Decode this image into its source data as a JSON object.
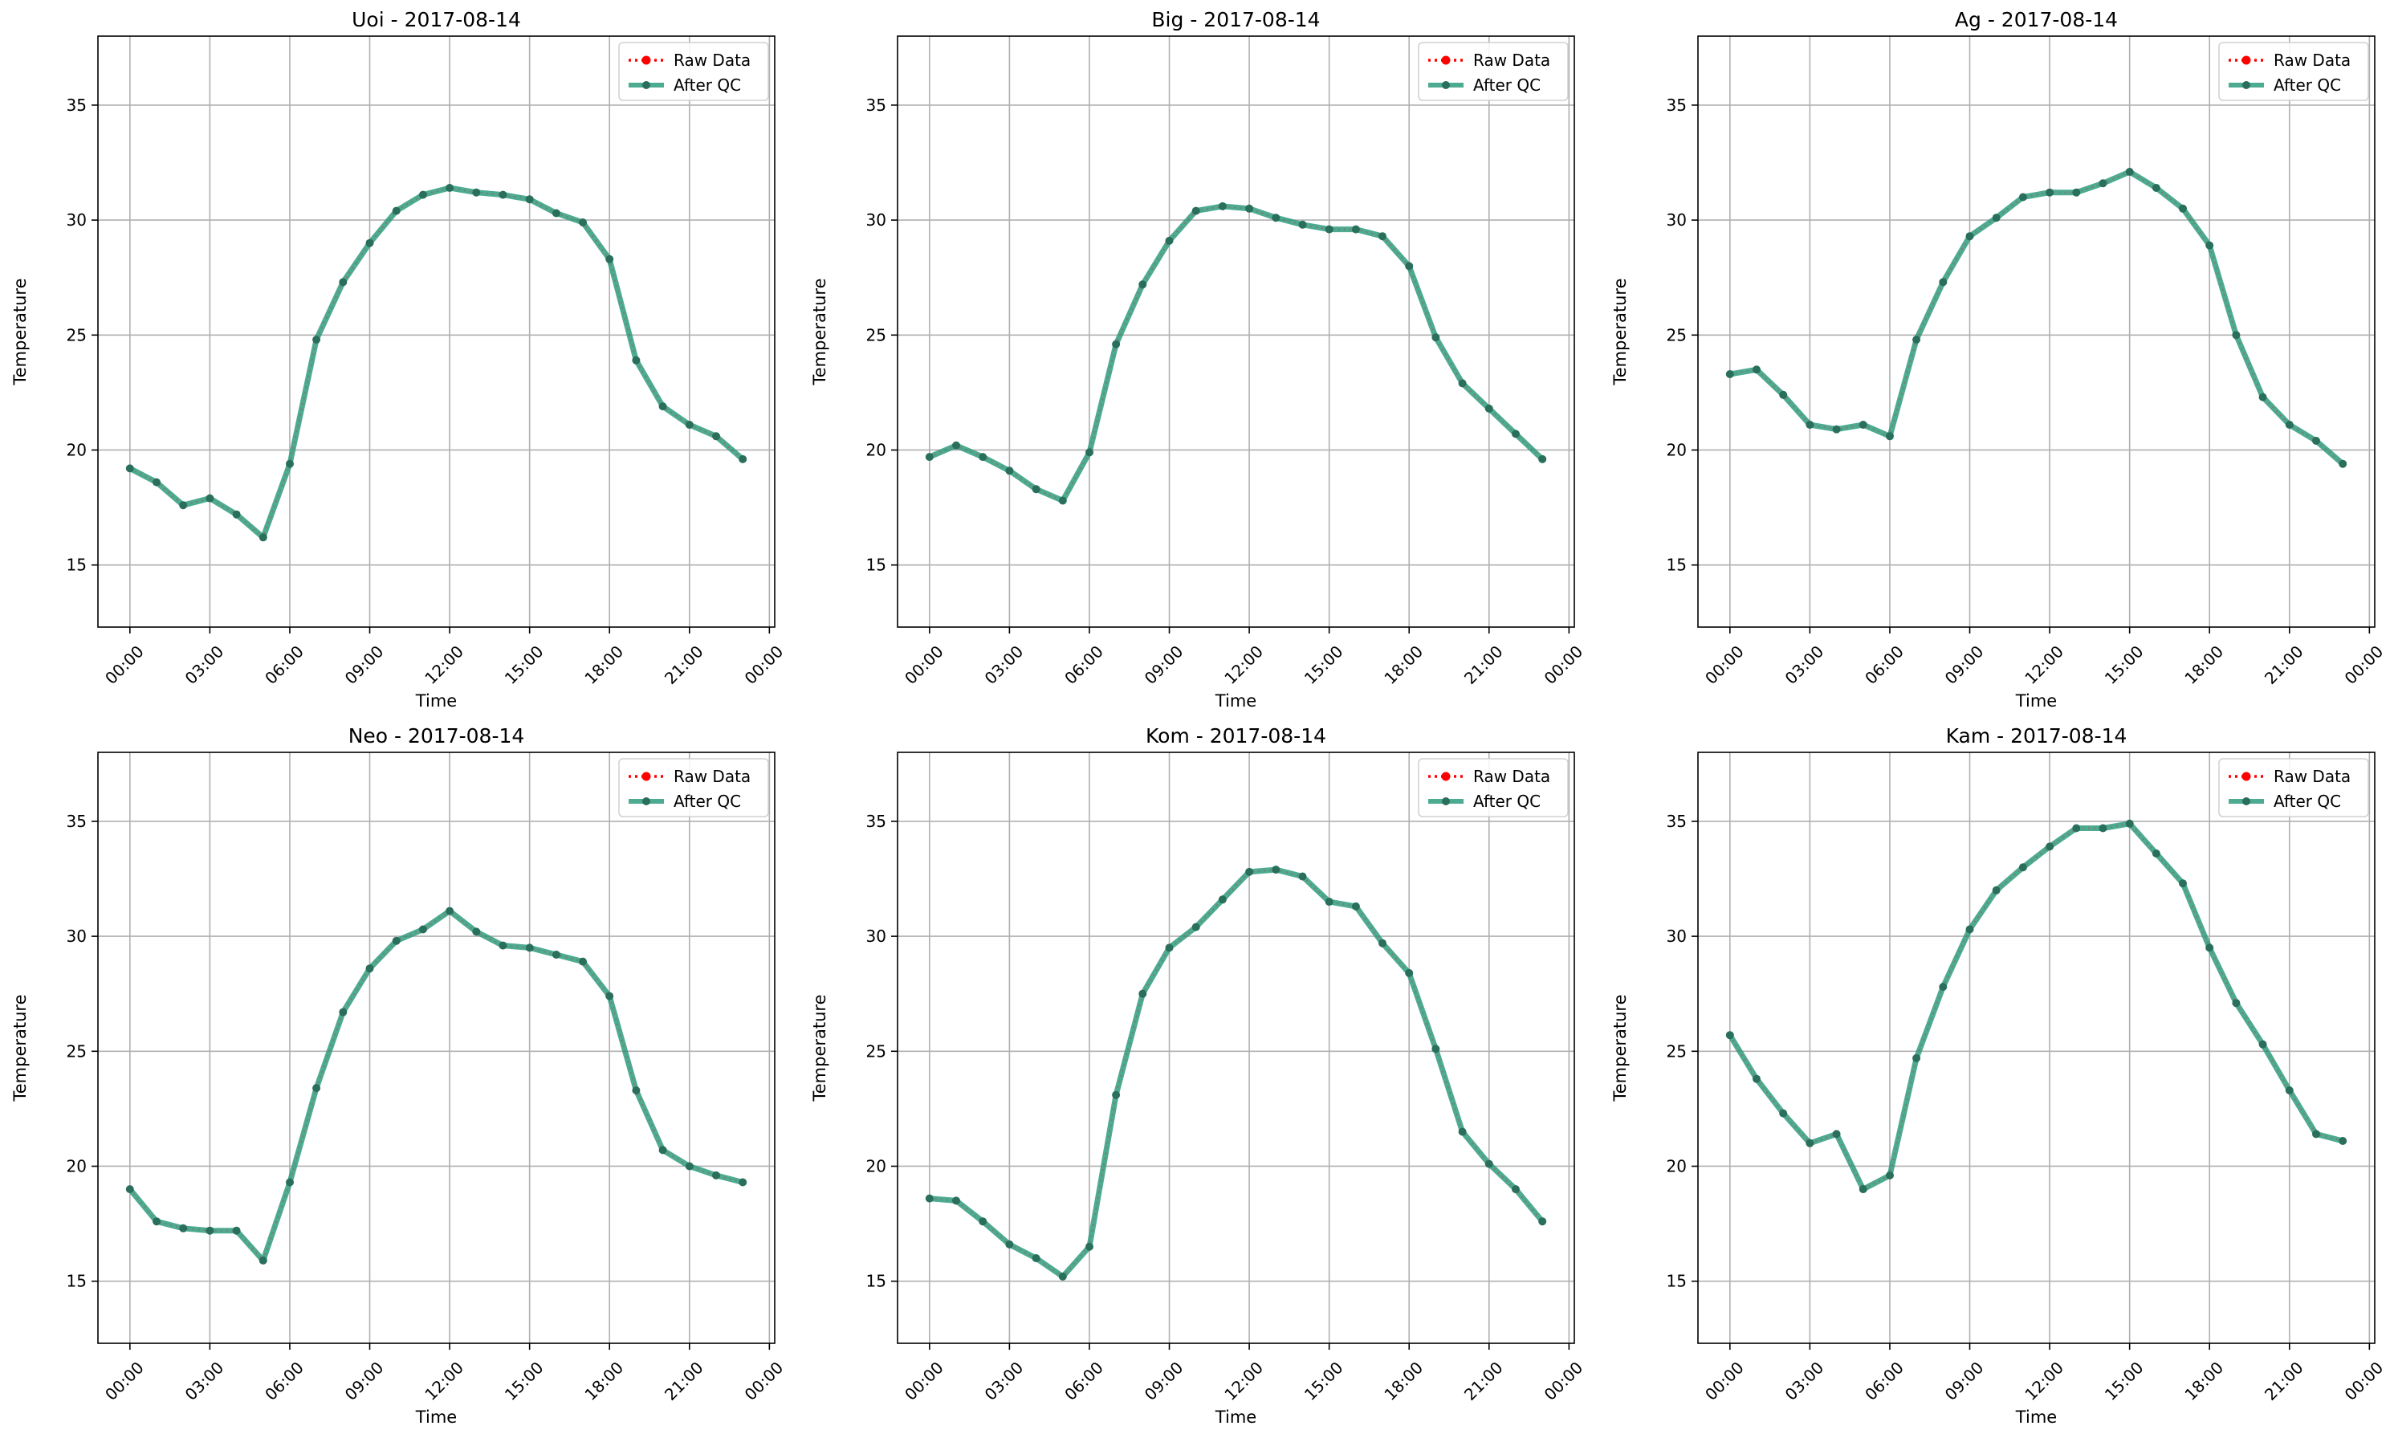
{
  "colors": {
    "raw": "#ff0000",
    "qc": "#2e9c7e",
    "qc_marker": "#2a6f5c",
    "grid": "#b0b0b0"
  },
  "chart_data": [
    {
      "type": "line",
      "title": "Uoi - 2017-08-14",
      "xlabel": "Time",
      "ylabel": "Temperature",
      "x_ticks": [
        "00:00",
        "03:00",
        "06:00",
        "09:00",
        "12:00",
        "15:00",
        "18:00",
        "21:00",
        "00:00"
      ],
      "y_ticks": [
        15,
        20,
        25,
        30,
        35
      ],
      "xlim_hours": [
        -1.2,
        24.2
      ],
      "ylim": [
        12.3,
        38.0
      ],
      "grid": true,
      "legend": "top-right",
      "series": [
        {
          "name": "Raw Data",
          "values": [
            19.2,
            18.6,
            17.6,
            17.9,
            17.2,
            16.2,
            19.4,
            24.8,
            27.3,
            29.0,
            30.4,
            31.1,
            31.4,
            31.2,
            31.1,
            30.9,
            30.3,
            29.9,
            28.3,
            23.9,
            21.9,
            21.1,
            20.6,
            19.6
          ]
        },
        {
          "name": "After QC",
          "values": [
            19.2,
            18.6,
            17.6,
            17.9,
            17.2,
            16.2,
            19.4,
            24.8,
            27.3,
            29.0,
            30.4,
            31.1,
            31.4,
            31.2,
            31.1,
            30.9,
            30.3,
            29.9,
            28.3,
            23.9,
            21.9,
            21.1,
            20.6,
            19.6
          ]
        }
      ]
    },
    {
      "type": "line",
      "title": "Big - 2017-08-14",
      "xlabel": "Time",
      "ylabel": "Temperature",
      "x_ticks": [
        "00:00",
        "03:00",
        "06:00",
        "09:00",
        "12:00",
        "15:00",
        "18:00",
        "21:00",
        "00:00"
      ],
      "y_ticks": [
        15,
        20,
        25,
        30,
        35
      ],
      "xlim_hours": [
        -1.2,
        24.2
      ],
      "ylim": [
        12.3,
        38.0
      ],
      "grid": true,
      "legend": "top-right",
      "series": [
        {
          "name": "Raw Data",
          "values": [
            19.7,
            20.2,
            19.7,
            19.1,
            18.3,
            17.8,
            19.9,
            24.6,
            27.2,
            29.1,
            30.4,
            30.6,
            30.5,
            30.1,
            29.8,
            29.6,
            29.6,
            29.3,
            28.0,
            24.9,
            22.9,
            21.8,
            20.7,
            19.6
          ]
        },
        {
          "name": "After QC",
          "values": [
            19.7,
            20.2,
            19.7,
            19.1,
            18.3,
            17.8,
            19.9,
            24.6,
            27.2,
            29.1,
            30.4,
            30.6,
            30.5,
            30.1,
            29.8,
            29.6,
            29.6,
            29.3,
            28.0,
            24.9,
            22.9,
            21.8,
            20.7,
            19.6
          ]
        }
      ]
    },
    {
      "type": "line",
      "title": "Ag - 2017-08-14",
      "xlabel": "Time",
      "ylabel": "Temperature",
      "x_ticks": [
        "00:00",
        "03:00",
        "06:00",
        "09:00",
        "12:00",
        "15:00",
        "18:00",
        "21:00",
        "00:00"
      ],
      "y_ticks": [
        15,
        20,
        25,
        30,
        35
      ],
      "xlim_hours": [
        -1.2,
        24.2
      ],
      "ylim": [
        12.3,
        38.0
      ],
      "grid": true,
      "legend": "top-right",
      "series": [
        {
          "name": "Raw Data",
          "values": [
            23.3,
            23.5,
            22.4,
            21.1,
            20.9,
            21.1,
            20.6,
            24.8,
            27.3,
            29.3,
            30.1,
            31.0,
            31.2,
            31.2,
            31.6,
            32.1,
            31.4,
            30.5,
            28.9,
            25.0,
            22.3,
            21.1,
            20.4,
            19.4
          ]
        },
        {
          "name": "After QC",
          "values": [
            23.3,
            23.5,
            22.4,
            21.1,
            20.9,
            21.1,
            20.6,
            24.8,
            27.3,
            29.3,
            30.1,
            31.0,
            31.2,
            31.2,
            31.6,
            32.1,
            31.4,
            30.5,
            28.9,
            25.0,
            22.3,
            21.1,
            20.4,
            19.4
          ]
        }
      ]
    },
    {
      "type": "line",
      "title": "Neo - 2017-08-14",
      "xlabel": "Time",
      "ylabel": "Temperature",
      "x_ticks": [
        "00:00",
        "03:00",
        "06:00",
        "09:00",
        "12:00",
        "15:00",
        "18:00",
        "21:00",
        "00:00"
      ],
      "y_ticks": [
        15,
        20,
        25,
        30,
        35
      ],
      "xlim_hours": [
        -1.2,
        24.2
      ],
      "ylim": [
        12.3,
        38.0
      ],
      "grid": true,
      "legend": "top-right",
      "series": [
        {
          "name": "Raw Data",
          "values": [
            19.0,
            17.6,
            17.3,
            17.2,
            17.2,
            15.9,
            19.3,
            23.4,
            26.7,
            28.6,
            29.8,
            30.3,
            31.1,
            30.2,
            29.6,
            29.5,
            29.2,
            28.9,
            27.4,
            23.3,
            20.7,
            20.0,
            19.6,
            19.3
          ]
        },
        {
          "name": "After QC",
          "values": [
            19.0,
            17.6,
            17.3,
            17.2,
            17.2,
            15.9,
            19.3,
            23.4,
            26.7,
            28.6,
            29.8,
            30.3,
            31.1,
            30.2,
            29.6,
            29.5,
            29.2,
            28.9,
            27.4,
            23.3,
            20.7,
            20.0,
            19.6,
            19.3
          ]
        }
      ]
    },
    {
      "type": "line",
      "title": "Kom - 2017-08-14",
      "xlabel": "Time",
      "ylabel": "Temperature",
      "x_ticks": [
        "00:00",
        "03:00",
        "06:00",
        "09:00",
        "12:00",
        "15:00",
        "18:00",
        "21:00",
        "00:00"
      ],
      "y_ticks": [
        15,
        20,
        25,
        30,
        35
      ],
      "xlim_hours": [
        -1.2,
        24.2
      ],
      "ylim": [
        12.3,
        38.0
      ],
      "grid": true,
      "legend": "top-right",
      "series": [
        {
          "name": "Raw Data",
          "values": [
            18.6,
            18.5,
            17.6,
            16.6,
            16.0,
            15.2,
            16.5,
            23.1,
            27.5,
            29.5,
            30.4,
            31.6,
            32.8,
            32.9,
            32.6,
            31.5,
            31.3,
            29.7,
            28.4,
            25.1,
            21.5,
            20.1,
            19.0,
            17.6
          ]
        },
        {
          "name": "After QC",
          "values": [
            18.6,
            18.5,
            17.6,
            16.6,
            16.0,
            15.2,
            16.5,
            23.1,
            27.5,
            29.5,
            30.4,
            31.6,
            32.8,
            32.9,
            32.6,
            31.5,
            31.3,
            29.7,
            28.4,
            25.1,
            21.5,
            20.1,
            19.0,
            17.6
          ]
        }
      ]
    },
    {
      "type": "line",
      "title": "Kam - 2017-08-14",
      "xlabel": "Time",
      "ylabel": "Temperature",
      "x_ticks": [
        "00:00",
        "03:00",
        "06:00",
        "09:00",
        "12:00",
        "15:00",
        "18:00",
        "21:00",
        "00:00"
      ],
      "y_ticks": [
        15,
        20,
        25,
        30,
        35
      ],
      "xlim_hours": [
        -1.2,
        24.2
      ],
      "ylim": [
        12.3,
        38.0
      ],
      "grid": true,
      "legend": "top-right",
      "series": [
        {
          "name": "Raw Data",
          "values": [
            25.7,
            23.8,
            22.3,
            21.0,
            21.4,
            19.0,
            19.6,
            24.7,
            27.8,
            30.3,
            32.0,
            33.0,
            33.9,
            34.7,
            34.7,
            34.9,
            33.6,
            32.3,
            29.5,
            27.1,
            25.3,
            23.3,
            21.4,
            21.1
          ]
        },
        {
          "name": "After QC",
          "values": [
            25.7,
            23.8,
            22.3,
            21.0,
            21.4,
            19.0,
            19.6,
            24.7,
            27.8,
            30.3,
            32.0,
            33.0,
            33.9,
            34.7,
            34.7,
            34.9,
            33.6,
            32.3,
            29.5,
            27.1,
            25.3,
            23.3,
            21.4,
            21.1
          ]
        }
      ]
    }
  ]
}
